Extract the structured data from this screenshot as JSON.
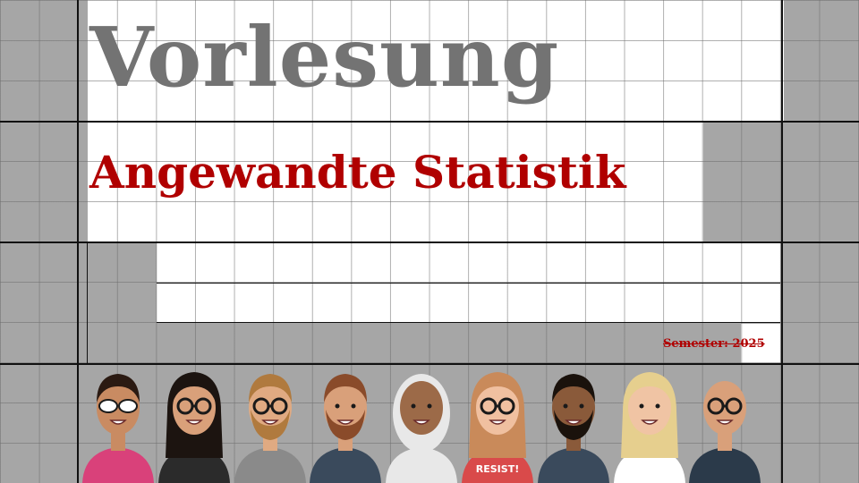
{
  "slide": {
    "title": "Vorlesung",
    "subtitle": "Angewandte Statistik",
    "semester_label": "Semester:",
    "semester_year": "2025"
  },
  "avatars": [
    {
      "name": "avatar-sunglasses-man",
      "icon": "person-sunglasses-icon",
      "skin": "#c98b62",
      "hair": "#2b1a12",
      "shirt": "#d9417a",
      "glasses": "sunglasses"
    },
    {
      "name": "avatar-flower-crown-woman",
      "icon": "person-flowers-icon",
      "skin": "#d9a07a",
      "hair": "#1c1410",
      "shirt": "#2b2b2b",
      "glasses": "round"
    },
    {
      "name": "avatar-bearded-blond-man",
      "icon": "person-beard-icon",
      "skin": "#e0aa82",
      "hair": "#b07a3e",
      "shirt": "#8a8a8a",
      "glasses": "round"
    },
    {
      "name": "avatar-hoodie-man",
      "icon": "person-hoodie-icon",
      "skin": "#d9a07a",
      "hair": "#8a4b2a",
      "shirt": "#3a4a5c",
      "glasses": "none"
    },
    {
      "name": "avatar-hijab-woman",
      "icon": "person-hijab-icon",
      "skin": "#9c6a48",
      "hair": "#e8e8e8",
      "shirt": "#e8e8e8",
      "glasses": "none"
    },
    {
      "name": "avatar-resist-woman",
      "icon": "person-resist-icon",
      "skin": "#f0c0a0",
      "hair": "#c98a5a",
      "shirt": "#d94a4a",
      "glasses": "round",
      "shirt_text": "RESIST!"
    },
    {
      "name": "avatar-curly-bearded-man",
      "icon": "person-curly-icon",
      "skin": "#8a5a3a",
      "hair": "#1a120c",
      "shirt": "#3a4a5c",
      "glasses": "none"
    },
    {
      "name": "avatar-blonde-woman",
      "icon": "person-blonde-icon",
      "skin": "#f0c4a4",
      "hair": "#e6cf8e",
      "shirt": "#ffffff",
      "glasses": "none"
    },
    {
      "name": "avatar-bald-man",
      "icon": "person-bald-icon",
      "skin": "#d9a07a",
      "hair": "#d9a07a",
      "shirt": "#2b3a4a",
      "glasses": "round"
    }
  ]
}
